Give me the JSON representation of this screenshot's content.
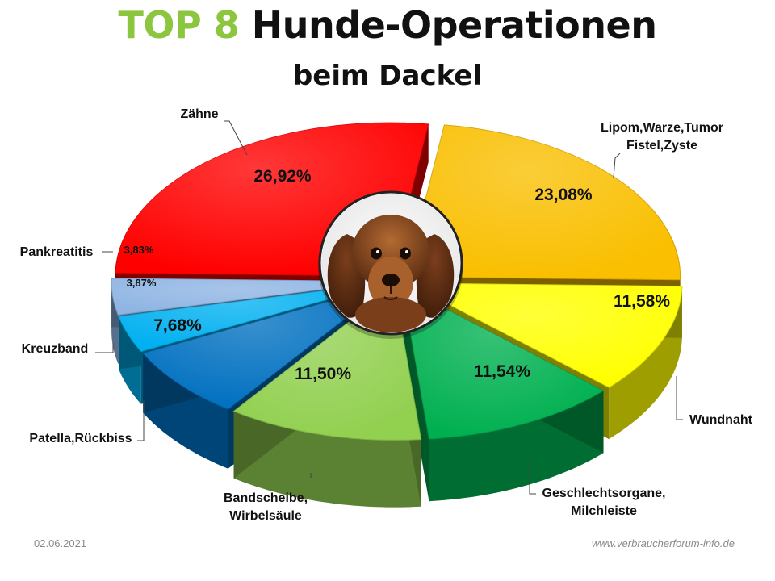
{
  "header": {
    "title_accent": "TOP 8",
    "title_main": "Hunde-Operationen",
    "subtitle": "beim Dackel"
  },
  "footer": {
    "date": "02.06.2021",
    "website": "www.verbraucherforum-info.de"
  },
  "chart_data": {
    "type": "pie",
    "style": "3d-exploded",
    "title": "TOP 8 Hunde-Operationen beim Dackel",
    "slices": [
      {
        "label": [
          "Lipom,Warze,Tumor",
          "Fistel,Zyste"
        ],
        "value": 23.08,
        "value_label": "23,08%",
        "color": "#f9bf00"
      },
      {
        "label": [
          "Wundnaht"
        ],
        "value": 11.58,
        "value_label": "11,58%",
        "color": "#ffff00"
      },
      {
        "label": [
          "Geschlechtsorgane,",
          "Milchleiste"
        ],
        "value": 11.54,
        "value_label": "11,54%",
        "color": "#00b050"
      },
      {
        "label": [
          "Bandscheibe,",
          "Wirbelsäule"
        ],
        "value": 11.5,
        "value_label": "11,50%",
        "color": "#92d050"
      },
      {
        "label": [
          "Patella,Rückbiss"
        ],
        "value": 7.68,
        "value_label": "7,68%",
        "color": "#0070c0"
      },
      {
        "label": [
          "Kreuzband"
        ],
        "value": 3.87,
        "value_label": "3,87%",
        "color": "#00b0f0"
      },
      {
        "label": [
          "Pankreatitis"
        ],
        "value": 3.83,
        "value_label": "3,83%",
        "color": "#8eb4e3"
      },
      {
        "label": [
          "Zähne"
        ],
        "value": 26.92,
        "value_label": "26,92%",
        "color": "#ff0000"
      }
    ],
    "center_image": "dachshund-puppy-photo"
  }
}
